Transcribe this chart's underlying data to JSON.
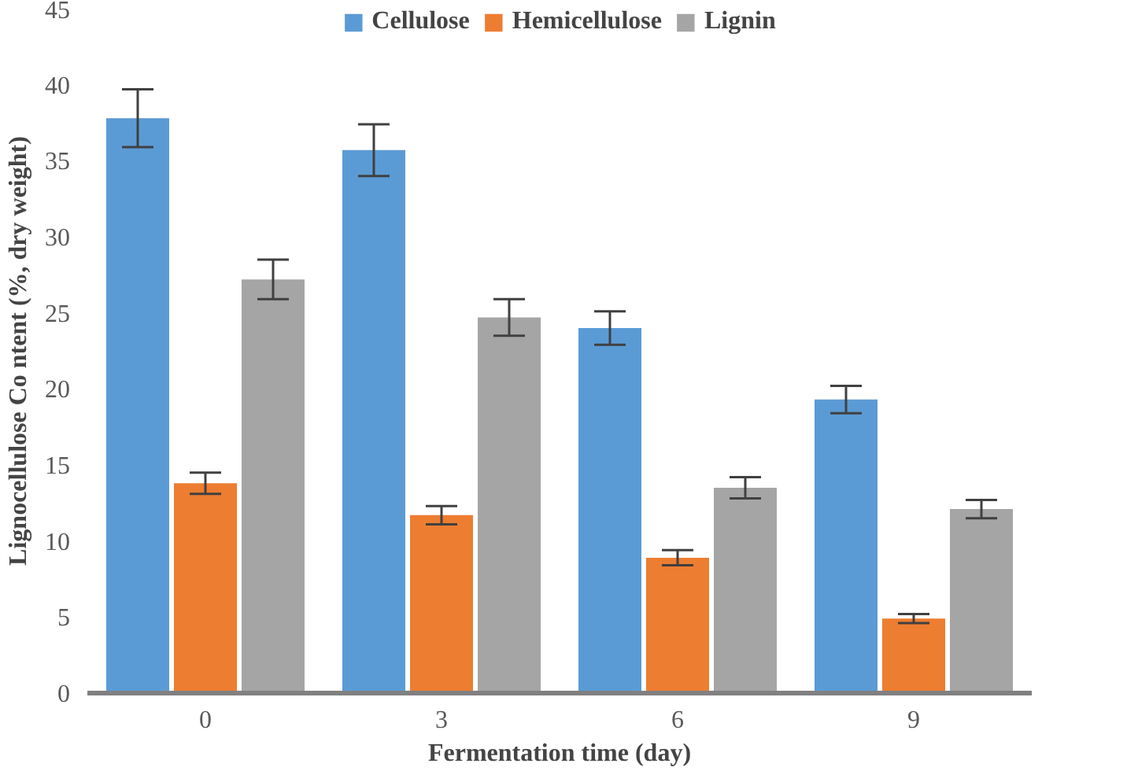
{
  "chart_data": {
    "type": "bar",
    "xlabel": "Fermentation time (day)",
    "ylabel": "Lignocellulose Co ntent (%, dry weight)",
    "categories": [
      "0",
      "3",
      "6",
      "9"
    ],
    "series": [
      {
        "name": "Cellulose",
        "color": "#5b9bd5",
        "values": [
          37.8,
          35.7,
          24.0,
          19.3
        ],
        "errors": [
          1.9,
          1.7,
          1.1,
          0.9
        ]
      },
      {
        "name": "Hemicellulose",
        "color": "#ed7d31",
        "values": [
          13.8,
          11.7,
          8.9,
          4.9
        ],
        "errors": [
          0.7,
          0.6,
          0.5,
          0.3
        ]
      },
      {
        "name": "Lignin",
        "color": "#a5a5a5",
        "values": [
          27.2,
          24.7,
          13.5,
          12.1
        ],
        "errors": [
          1.3,
          1.2,
          0.7,
          0.6
        ]
      }
    ],
    "ylim": [
      0,
      45
    ],
    "yticks": [
      0,
      5,
      10,
      15,
      20,
      25,
      30,
      35,
      40,
      45
    ],
    "grid": false,
    "legend": "top"
  }
}
